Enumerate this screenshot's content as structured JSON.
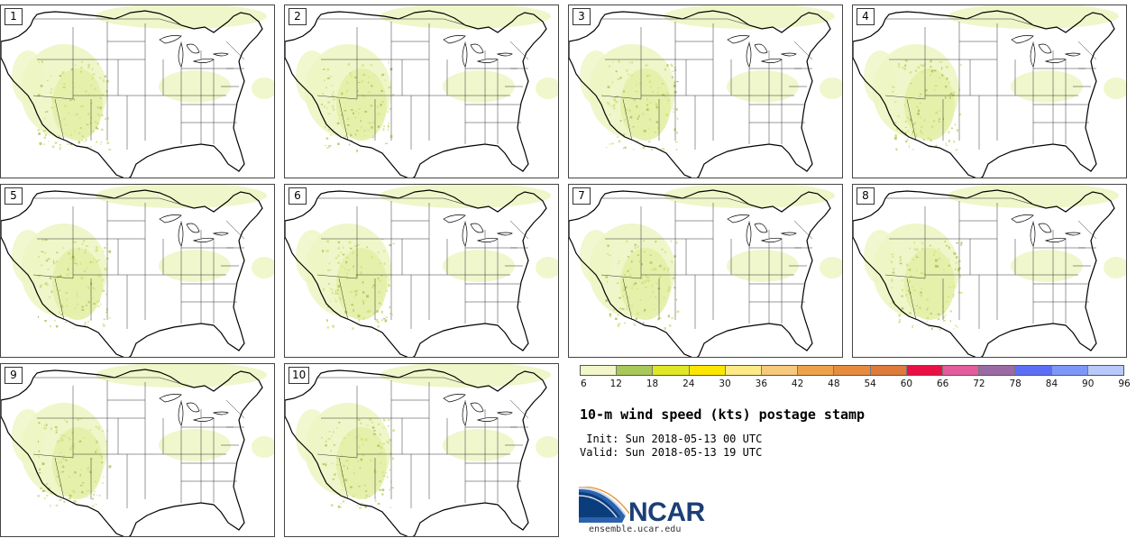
{
  "panels": [
    {
      "label": "1"
    },
    {
      "label": "2"
    },
    {
      "label": "3"
    },
    {
      "label": "4"
    },
    {
      "label": "5"
    },
    {
      "label": "6"
    },
    {
      "label": "7"
    },
    {
      "label": "8"
    },
    {
      "label": "9"
    },
    {
      "label": "10"
    }
  ],
  "legend": {
    "colors": [
      "#f1f7c8",
      "#a8c85a",
      "#dfe824",
      "#fbe600",
      "#fdea86",
      "#f6c97c",
      "#eda24a",
      "#e78c3e",
      "#de7a3a",
      "#ea1045",
      "#e45c9b",
      "#9a6aa6",
      "#5c6ef5",
      "#7d97f9",
      "#b9c9fb"
    ],
    "ticks": [
      "6",
      "12",
      "18",
      "24",
      "30",
      "36",
      "42",
      "48",
      "54",
      "60",
      "66",
      "72",
      "78",
      "84",
      "90",
      "96"
    ]
  },
  "title": "10-m wind speed (kts) postage stamp",
  "init_line": " Init: Sun 2018-05-13 00 UTC",
  "valid_line": "Valid: Sun 2018-05-13 19 UTC",
  "logo": {
    "name": "NCAR",
    "url": "ensemble.ucar.edu"
  }
}
